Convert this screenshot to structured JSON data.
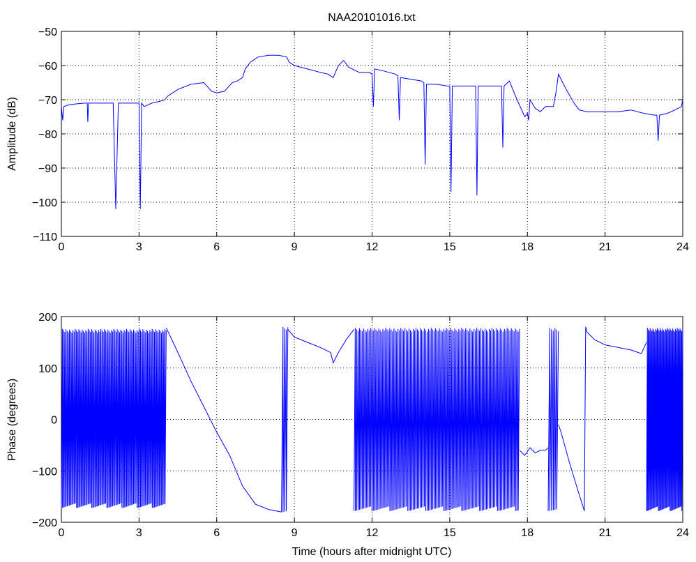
{
  "title": "NAA20101016.txt",
  "chart_data": [
    {
      "type": "line",
      "panel": "amplitude",
      "title": "NAA20101016.txt",
      "ylabel": "Amplitude (dB)",
      "xlabel": "",
      "xlim": [
        0,
        24
      ],
      "ylim": [
        -110,
        -50
      ],
      "xticks": [
        0,
        3,
        6,
        9,
        12,
        15,
        18,
        21,
        24
      ],
      "xtick_labels": [
        "0",
        "3",
        "6",
        "9",
        "12",
        "15",
        "18",
        "21",
        "24"
      ],
      "yticks": [
        -110,
        -100,
        -90,
        -80,
        -70,
        -60,
        -50
      ],
      "ytick_labels": [
        "−110",
        "−100",
        "−90",
        "−80",
        "−70",
        "−60",
        "−50"
      ],
      "grid": true,
      "color": "#0000ff",
      "series": [
        {
          "x": [
            0,
            0.05,
            0.1,
            0.3,
            0.6,
            0.9,
            1.0,
            1.02,
            1.05,
            1.1,
            1.5,
            1.9,
            2.0,
            2.1,
            2.2,
            2.5,
            2.9,
            3.0,
            3.05,
            3.1,
            3.2,
            3.5,
            3.8,
            4.0,
            4.1,
            4.5,
            5.0,
            5.5,
            5.8,
            6.0,
            6.3,
            6.6,
            6.8,
            7.0,
            7.1,
            7.3,
            7.6,
            8.0,
            8.4,
            8.7,
            8.8,
            9.0,
            9.5,
            10.0,
            10.3,
            10.5,
            10.7,
            10.9,
            11.1,
            11.5,
            11.9,
            12.0,
            12.05,
            12.1,
            12.4,
            12.9,
            13.0,
            13.05,
            13.1,
            13.5,
            13.9,
            14.0,
            14.05,
            14.1,
            14.5,
            14.9,
            15.0,
            15.05,
            15.1,
            15.5,
            15.9,
            16.0,
            16.05,
            16.1,
            16.5,
            16.9,
            17.0,
            17.05,
            17.1,
            17.3,
            17.6,
            17.9,
            18.0,
            18.05,
            18.1,
            18.3,
            18.5,
            18.7,
            19.0,
            19.1,
            19.2,
            19.5,
            19.8,
            20.0,
            20.3,
            21.0,
            21.5,
            22.0,
            22.5,
            22.9,
            23.0,
            23.05,
            23.1,
            23.4,
            23.7,
            23.95,
            24.0
          ],
          "y": [
            -72,
            -76,
            -72,
            -71.5,
            -71.2,
            -71,
            -71,
            -76.5,
            -71,
            -71,
            -71,
            -71,
            -71,
            -102,
            -71,
            -71,
            -71,
            -71,
            -102,
            -71,
            -72,
            -71,
            -70.5,
            -70,
            -69,
            -67,
            -65.5,
            -65,
            -67.5,
            -68,
            -67.5,
            -65,
            -64.5,
            -63.5,
            -61,
            -59,
            -57.5,
            -57,
            -57,
            -57.5,
            -59,
            -60,
            -61,
            -62,
            -62.5,
            -63.5,
            -60,
            -58.5,
            -60.5,
            -62,
            -62,
            -62.5,
            -72,
            -61,
            -61.5,
            -62.5,
            -63,
            -76,
            -63.5,
            -64,
            -64.5,
            -65,
            -89,
            -65.5,
            -65.5,
            -66,
            -66,
            -97,
            -66,
            -66,
            -66,
            -66,
            -98,
            -66,
            -66,
            -66,
            -66,
            -84,
            -66,
            -64.5,
            -70,
            -75,
            -74,
            -76,
            -70,
            -72.5,
            -73.5,
            -72,
            -72,
            -68,
            -62.5,
            -67,
            -71,
            -73,
            -73.5,
            -73.5,
            -73.5,
            -73,
            -74,
            -74.5,
            -74.5,
            -82,
            -74.5,
            -74,
            -73,
            -72,
            -70
          ]
        }
      ]
    },
    {
      "type": "line",
      "panel": "phase",
      "title": "",
      "ylabel": "Phase (degrees)",
      "xlabel": "Time (hours after midnight UTC)",
      "xlim": [
        0,
        24
      ],
      "ylim": [
        -200,
        200
      ],
      "xticks": [
        0,
        3,
        6,
        9,
        12,
        15,
        18,
        21,
        24
      ],
      "xtick_labels": [
        "0",
        "3",
        "6",
        "9",
        "12",
        "15",
        "18",
        "21",
        "24"
      ],
      "yticks": [
        -200,
        -100,
        0,
        100,
        200
      ],
      "ytick_labels": [
        "−200",
        "−100",
        "0",
        "100",
        "200"
      ],
      "grid": true,
      "color": "#0000ff",
      "series": [
        {
          "segments": [
            {
              "kind": "wrapped",
              "x0": 0.0,
              "x1": 4.05,
              "ymin": -172,
              "ymax": 176,
              "cycles": 90
            },
            {
              "kind": "line",
              "x": [
                4.05,
                4.5,
                5.0,
                5.5,
                6.0,
                6.5,
                7.0,
                7.5,
                8.0,
                8.5
              ],
              "y": [
                178,
                130,
                75,
                25,
                -25,
                -70,
                -130,
                -165,
                -175,
                -180
              ]
            },
            {
              "kind": "wrapped",
              "x0": 8.5,
              "x1": 8.75,
              "ymin": -180,
              "ymax": 180,
              "cycles": 4
            },
            {
              "kind": "line",
              "x": [
                8.75,
                9.0,
                9.5,
                10.0,
                10.4,
                10.5,
                10.7,
                11.0,
                11.3
              ],
              "y": [
                175,
                160,
                150,
                140,
                130,
                110,
                130,
                155,
                175
              ]
            },
            {
              "kind": "wrapped",
              "x0": 11.3,
              "x1": 17.7,
              "ymin": -178,
              "ymax": 178,
              "cycles": 120
            },
            {
              "kind": "line",
              "x": [
                17.7,
                17.9,
                18.1,
                18.3,
                18.5,
                18.7,
                18.8
              ],
              "y": [
                -60,
                -70,
                -55,
                -65,
                -60,
                -60,
                -55
              ]
            },
            {
              "kind": "wrapped",
              "x0": 18.8,
              "x1": 19.2,
              "ymin": -178,
              "ymax": 178,
              "cycles": 6
            },
            {
              "kind": "line",
              "x": [
                19.2,
                19.3,
                19.6,
                19.9,
                20.2,
                20.25,
                20.3,
                20.6,
                21.0,
                21.5,
                22.0,
                22.4,
                22.6
              ],
              "y": [
                -10,
                -25,
                -80,
                -130,
                -178,
                180,
                170,
                155,
                145,
                140,
                135,
                128,
                150
              ]
            },
            {
              "kind": "wrapped",
              "x0": 22.6,
              "x1": 24.0,
              "ymin": -178,
              "ymax": 178,
              "cycles": 40
            }
          ]
        }
      ]
    }
  ]
}
